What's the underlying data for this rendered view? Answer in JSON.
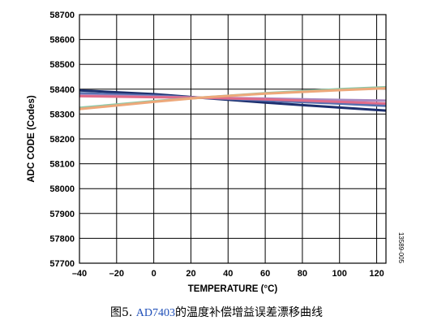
{
  "chart_data": {
    "type": "line",
    "title": "",
    "xlabel": "TEMPERATURE (°C)",
    "ylabel": "ADC CODE (Codes)",
    "xlim": [
      -40,
      125
    ],
    "ylim": [
      57700,
      58700
    ],
    "x_ticks": [
      -40,
      -20,
      0,
      20,
      40,
      60,
      80,
      100,
      120
    ],
    "x_tick_labels": [
      "–40",
      "–20",
      "0",
      "20",
      "40",
      "60",
      "80",
      "100",
      "120"
    ],
    "y_ticks": [
      57700,
      57800,
      57900,
      58000,
      58100,
      58200,
      58300,
      58400,
      58500,
      58600,
      58700
    ],
    "grid": true,
    "legend": "none",
    "series": [
      {
        "color": "#1c2f6e",
        "x": [
          -40,
          0,
          25,
          60,
          100,
          125
        ],
        "values": [
          58395,
          58380,
          58366,
          58346,
          58326,
          58314
        ]
      },
      {
        "color": "#5570b0",
        "x": [
          -40,
          0,
          25,
          60,
          100,
          125
        ],
        "values": [
          58384,
          58374,
          58366,
          58355,
          58342,
          58333
        ]
      },
      {
        "color": "#a788c0",
        "x": [
          -40,
          0,
          25,
          60,
          100,
          125
        ],
        "values": [
          58376,
          58370,
          58366,
          58362,
          58357,
          58354
        ]
      },
      {
        "color": "#e06c8a",
        "x": [
          -40,
          0,
          25,
          60,
          100,
          125
        ],
        "values": [
          58372,
          58368,
          58366,
          58359,
          58349,
          58342
        ]
      },
      {
        "color": "#8ec8a8",
        "x": [
          -40,
          0,
          25,
          60,
          100,
          125
        ],
        "values": [
          58325,
          58352,
          58366,
          58384,
          58400,
          58408
        ]
      },
      {
        "color": "#eda87a",
        "x": [
          -40,
          0,
          25,
          60,
          100,
          125
        ],
        "values": [
          58320,
          58349,
          58366,
          58382,
          58396,
          58404
        ]
      }
    ],
    "annotation": "13589-005"
  },
  "caption": {
    "prefix": "图5. ",
    "link": "AD7403",
    "suffix": "的温度补偿增益误差漂移曲线"
  }
}
